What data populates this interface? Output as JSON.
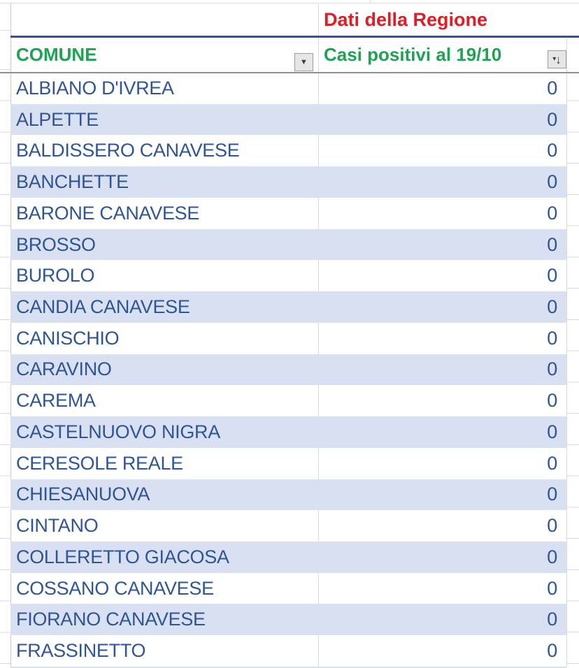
{
  "title": {
    "region_label": "Dati della Regione"
  },
  "header": {
    "comune_label": "COMUNE",
    "cases_label": "Casi positivi al 19/10"
  },
  "icons": {
    "filter_dropdown": "▼",
    "sort_small_triangle": "▾",
    "sort_down_arrow": "↓"
  },
  "colors": {
    "accent_red": "#E41B23",
    "accent_green": "#1DA351",
    "text_blue": "#2E5596",
    "band_blue": "#D9E0F1",
    "rule_blue": "#2F5597"
  },
  "rows": [
    {
      "comune": "ALBIANO D'IVREA",
      "value": "0"
    },
    {
      "comune": "ALPETTE",
      "value": "0"
    },
    {
      "comune": "BALDISSERO CANAVESE",
      "value": "0"
    },
    {
      "comune": "BANCHETTE",
      "value": "0"
    },
    {
      "comune": "BARONE CANAVESE",
      "value": "0"
    },
    {
      "comune": "BROSSO",
      "value": "0"
    },
    {
      "comune": "BUROLO",
      "value": "0"
    },
    {
      "comune": "CANDIA CANAVESE",
      "value": "0"
    },
    {
      "comune": "CANISCHIO",
      "value": "0"
    },
    {
      "comune": "CARAVINO",
      "value": "0"
    },
    {
      "comune": "CAREMA",
      "value": "0"
    },
    {
      "comune": "CASTELNUOVO NIGRA",
      "value": "0"
    },
    {
      "comune": "CERESOLE REALE",
      "value": "0"
    },
    {
      "comune": "CHIESANUOVA",
      "value": "0"
    },
    {
      "comune": "CINTANO",
      "value": "0"
    },
    {
      "comune": "COLLERETTO GIACOSA",
      "value": "0"
    },
    {
      "comune": "COSSANO CANAVESE",
      "value": "0"
    },
    {
      "comune": "FIORANO CANAVESE",
      "value": "0"
    },
    {
      "comune": "FRASSINETTO",
      "value": "0"
    }
  ]
}
